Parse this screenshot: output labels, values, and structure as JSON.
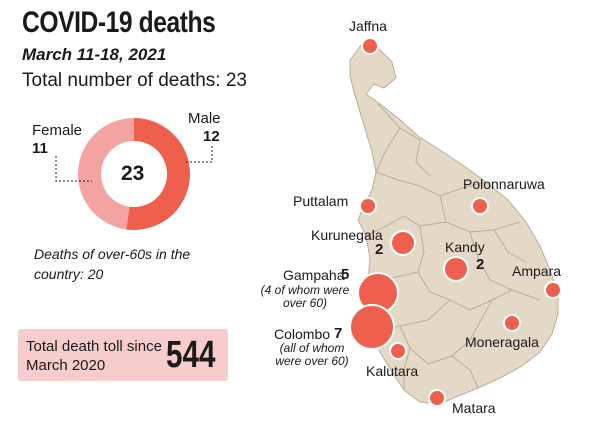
{
  "header": {
    "title": "COVID-19 deaths",
    "date_range": "March 11-18, 2021",
    "total_label": "Total number of deaths: 23"
  },
  "donut": {
    "total": "23",
    "female_label": "Female",
    "female_count": "11",
    "male_label": "Male",
    "male_count": "12",
    "female_value": 11,
    "male_value": 12,
    "female_color": "#f4a3a3",
    "male_color": "#ee5f4d"
  },
  "note": "Deaths of over-60s in the country: 20",
  "toll": {
    "label": "Total death toll since March 2020",
    "value": "544",
    "bg_color": "#f7cccc"
  },
  "map": {
    "land_color": "#e3d9c6",
    "district_line_color": "#b9ad97",
    "marker_color": "#ee5f4d",
    "districts": [
      {
        "name": "Jaffna",
        "deaths": null
      },
      {
        "name": "Polonnaruwa",
        "deaths": null
      },
      {
        "name": "Puttalam",
        "deaths": null
      },
      {
        "name": "Kurunegala",
        "deaths": "2"
      },
      {
        "name": "Kandy",
        "deaths": "2"
      },
      {
        "name": "Ampara",
        "deaths": null
      },
      {
        "name": "Gampaha",
        "deaths": "5",
        "note": "(4 of whom were over 60)"
      },
      {
        "name": "Colombo",
        "deaths": "7",
        "note": "(all of whom were over 60)"
      },
      {
        "name": "Moneragala",
        "deaths": null
      },
      {
        "name": "Kalutara",
        "deaths": null
      },
      {
        "name": "Matara",
        "deaths": null
      }
    ]
  }
}
